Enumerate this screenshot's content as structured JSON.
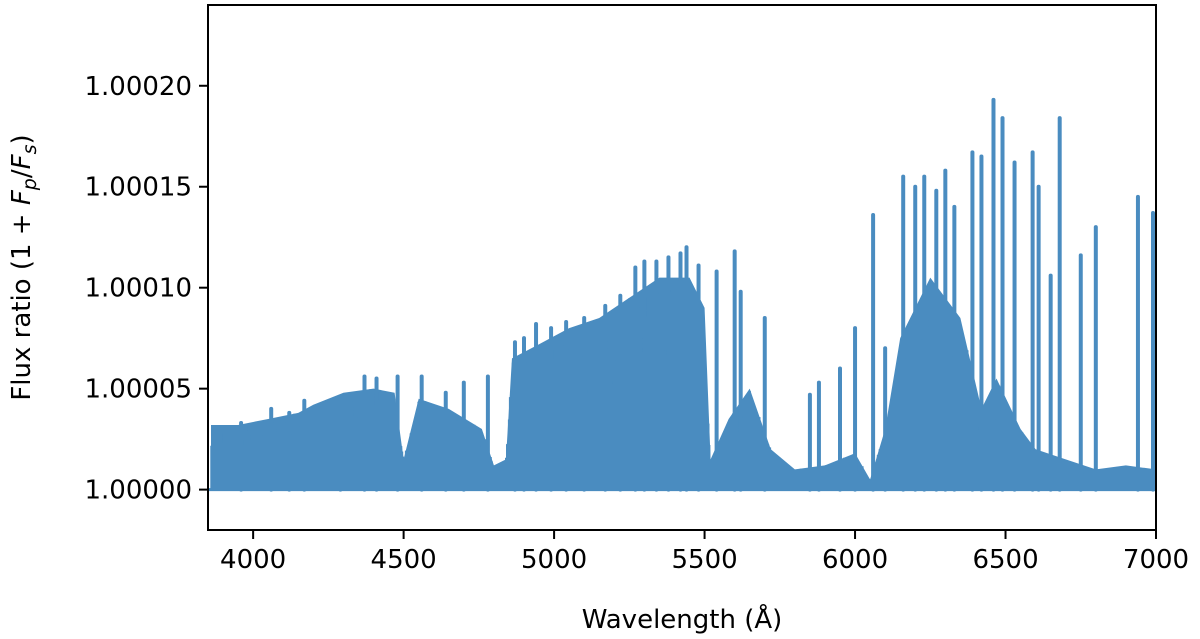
{
  "chart_data": {
    "type": "line",
    "title": "",
    "xlabel": "Wavelength (Å)",
    "ylabel": "Flux ratio (1 + F_p/F_s)",
    "ylabel_parts": {
      "prefix": "Flux ratio (1 + ",
      "num": "F",
      "num_sub": "p",
      "slash": "/",
      "den": "F",
      "den_sub": "s",
      "suffix": ")"
    },
    "xlim": [
      3850,
      7000
    ],
    "ylim": [
      0.99998,
      1.00024
    ],
    "xticks": [
      4000,
      4500,
      5000,
      5500,
      6000,
      6500,
      7000
    ],
    "xtick_labels": [
      "4000",
      "4500",
      "5000",
      "5500",
      "6000",
      "6500",
      "7000"
    ],
    "yticks": [
      1.0,
      1.00005,
      1.0001,
      1.00015,
      1.0002
    ],
    "ytick_labels": [
      "1.00000",
      "1.00005",
      "1.00010",
      "1.00015",
      "1.00020"
    ],
    "grid": false,
    "series": [
      {
        "color": "#4a8cc0",
        "baseline": 1.0,
        "envelope": [
          [
            3860,
            1.000032
          ],
          [
            3950,
            1.000032
          ],
          [
            4050,
            1.000035
          ],
          [
            4150,
            1.000038
          ],
          [
            4200,
            1.000042
          ],
          [
            4300,
            1.000048
          ],
          [
            4400,
            1.00005
          ],
          [
            4470,
            1.000048
          ],
          [
            4500,
            1.000015
          ],
          [
            4550,
            1.000045
          ],
          [
            4650,
            1.00004
          ],
          [
            4760,
            1.00003
          ],
          [
            4800,
            1.000012
          ],
          [
            4840,
            1.000015
          ],
          [
            4860,
            1.000065
          ],
          [
            4950,
            1.000072
          ],
          [
            5050,
            1.00008
          ],
          [
            5150,
            1.000085
          ],
          [
            5250,
            1.000095
          ],
          [
            5350,
            1.000105
          ],
          [
            5450,
            1.000105
          ],
          [
            5500,
            1.00009
          ],
          [
            5520,
            1.000015
          ],
          [
            5580,
            1.000035
          ],
          [
            5650,
            1.00005
          ],
          [
            5720,
            1.00002
          ],
          [
            5800,
            1.00001
          ],
          [
            5900,
            1.000012
          ],
          [
            6000,
            1.000018
          ],
          [
            6050,
            1.000005
          ],
          [
            6100,
            1.00003
          ],
          [
            6150,
            1.000075
          ],
          [
            6250,
            1.000105
          ],
          [
            6350,
            1.000085
          ],
          [
            6420,
            1.00004
          ],
          [
            6470,
            1.000055
          ],
          [
            6550,
            1.00003
          ],
          [
            6600,
            1.00002
          ],
          [
            6700,
            1.000015
          ],
          [
            6800,
            1.00001
          ],
          [
            6900,
            1.000012
          ],
          [
            7000,
            1.00001
          ]
        ],
        "peaks": [
          [
            3960,
            1.000033
          ],
          [
            4060,
            1.00004
          ],
          [
            4120,
            1.000038
          ],
          [
            4170,
            1.000044
          ],
          [
            4290,
            1.000042
          ],
          [
            4370,
            1.000056
          ],
          [
            4410,
            1.000055
          ],
          [
            4480,
            1.000056
          ],
          [
            4560,
            1.000056
          ],
          [
            4640,
            1.000048
          ],
          [
            4700,
            1.000053
          ],
          [
            4780,
            1.000056
          ],
          [
            4870,
            1.000073
          ],
          [
            4900,
            1.000075
          ],
          [
            4940,
            1.000082
          ],
          [
            4990,
            1.00008
          ],
          [
            5040,
            1.000083
          ],
          [
            5100,
            1.000085
          ],
          [
            5170,
            1.000091
          ],
          [
            5220,
            1.000096
          ],
          [
            5270,
            1.00011
          ],
          [
            5300,
            1.000113
          ],
          [
            5340,
            1.000113
          ],
          [
            5380,
            1.000115
          ],
          [
            5420,
            1.000117
          ],
          [
            5440,
            1.00012
          ],
          [
            5480,
            1.000111
          ],
          [
            5540,
            1.000108
          ],
          [
            5600,
            1.000118
          ],
          [
            5620,
            1.000098
          ],
          [
            5700,
            1.000085
          ],
          [
            5850,
            1.000047
          ],
          [
            5880,
            1.000053
          ],
          [
            5950,
            1.00006
          ],
          [
            6000,
            1.00008
          ],
          [
            6060,
            1.000136
          ],
          [
            6100,
            1.00007
          ],
          [
            6160,
            1.000155
          ],
          [
            6200,
            1.00015
          ],
          [
            6230,
            1.000155
          ],
          [
            6270,
            1.000148
          ],
          [
            6300,
            1.000158
          ],
          [
            6330,
            1.00014
          ],
          [
            6390,
            1.000167
          ],
          [
            6420,
            1.000165
          ],
          [
            6460,
            1.000193
          ],
          [
            6490,
            1.000184
          ],
          [
            6530,
            1.000162
          ],
          [
            6590,
            1.000167
          ],
          [
            6610,
            1.00015
          ],
          [
            6650,
            1.000106
          ],
          [
            6680,
            1.000184
          ],
          [
            6750,
            1.000116
          ],
          [
            6800,
            1.00013
          ],
          [
            6940,
            1.000145
          ],
          [
            6990,
            1.000137
          ]
        ]
      }
    ]
  }
}
